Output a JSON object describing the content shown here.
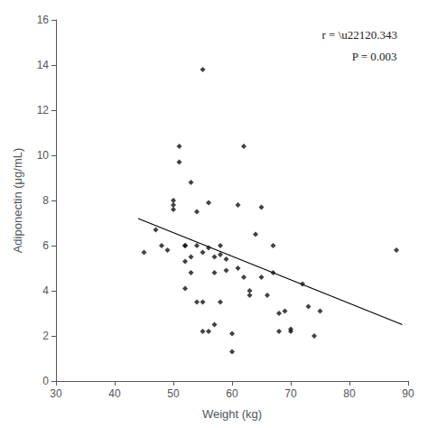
{
  "chart_data": {
    "type": "scatter",
    "xlabel": "Weight (kg)",
    "ylabel": "Adiponectin (μg/mL)",
    "annotations": [
      "r = \\u22120.343",
      "P = 0.003"
    ],
    "series": [
      {
        "type": "line",
        "color": "black",
        "x": [
          44,
          89
        ],
        "values": [
          7.2,
          2.5
        ]
      },
      {
        "type": "scatter",
        "color": "#111111",
        "marker": "diamond",
        "x": [
          45,
          47,
          48,
          49,
          50,
          50,
          50,
          51,
          51,
          52,
          52,
          52,
          52,
          53,
          53,
          53,
          54,
          54,
          54,
          55,
          55,
          55,
          55,
          56,
          56,
          56,
          57,
          57,
          57,
          58,
          58,
          58,
          59,
          59,
          60,
          60,
          61,
          61,
          62,
          62,
          63,
          63,
          64,
          65,
          65,
          66,
          67,
          67,
          68,
          68,
          69,
          70,
          70,
          72,
          73,
          74,
          75,
          88
        ],
        "values": [
          5.7,
          6.7,
          6.0,
          5.8,
          8.0,
          7.8,
          7.6,
          10.4,
          9.7,
          4.1,
          6.0,
          6.0,
          5.3,
          5.5,
          4.8,
          8.8,
          7.5,
          6.0,
          3.5,
          5.7,
          3.5,
          2.2,
          13.8,
          5.9,
          2.2,
          7.9,
          5.5,
          4.8,
          2.5,
          6.0,
          5.6,
          3.5,
          5.4,
          4.9,
          2.1,
          1.3,
          7.8,
          5.0,
          10.4,
          4.6,
          4.0,
          3.8,
          6.5,
          7.7,
          4.6,
          3.8,
          4.8,
          6.0,
          2.2,
          3.0,
          3.1,
          2.2,
          2.3,
          4.3,
          3.3,
          2.0,
          3.1,
          5.8
        ]
      }
    ],
    "xlim": [
      30,
      90
    ],
    "ylim": [
      0,
      16
    ],
    "xticks": [
      30,
      40,
      50,
      60,
      70,
      80,
      90
    ],
    "yticks": [
      0,
      2,
      4,
      6,
      8,
      10,
      12,
      14,
      16
    ],
    "grid": false
  }
}
